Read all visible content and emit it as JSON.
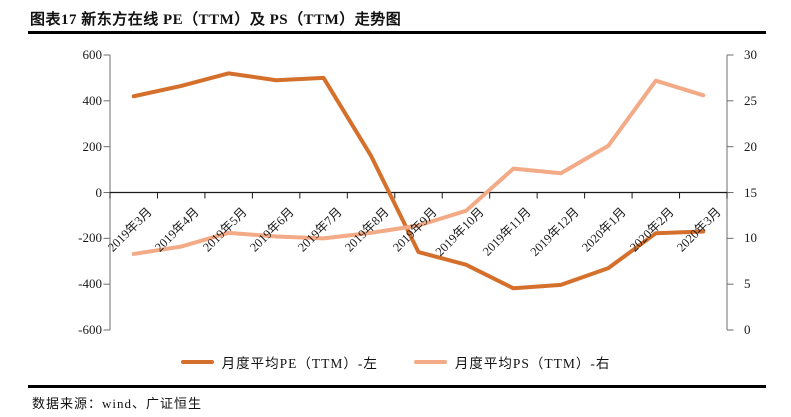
{
  "figure": {
    "title": "图表17 新东方在线 PE（TTM）及 PS（TTM）走势图",
    "source_note": "数据来源：wind、广证恒生"
  },
  "chart_data": {
    "type": "line",
    "title": "新东方在线 PE（TTM）及 PS（TTM）走势图",
    "categories": [
      "2019年3月",
      "2019年4月",
      "2019年5月",
      "2019年6月",
      "2019年7月",
      "2019年8月",
      "2019年9月",
      "2019年10月",
      "2019年11月",
      "2019年12月",
      "2020年1月",
      "2020年2月",
      "2020年3月"
    ],
    "series": [
      {
        "name": "月度平均PE（TTM）-左",
        "axis": "left",
        "color": "#D4702B",
        "values": [
          420,
          465,
          520,
          490,
          500,
          160,
          -260,
          -315,
          -418,
          -403,
          -330,
          -178,
          -170
        ]
      },
      {
        "name": "月度平均PS（TTM）-右",
        "axis": "right",
        "color": "#F2AA87",
        "values": [
          8.3,
          9.1,
          10.6,
          10.2,
          10.0,
          10.6,
          11.4,
          13.0,
          17.6,
          17.1,
          20.1,
          27.2,
          25.6
        ]
      }
    ],
    "left_axis": {
      "min": -600,
      "max": 600,
      "ticks": [
        600,
        400,
        200,
        0,
        -200,
        -400,
        -600
      ]
    },
    "right_axis": {
      "min": 0,
      "max": 30,
      "ticks": [
        30,
        25,
        20,
        15,
        10,
        5,
        0
      ]
    },
    "legend_position": "bottom",
    "grid": false,
    "axis_color": "#6e6e6e",
    "zero_line_color": "#1a1a1a"
  }
}
